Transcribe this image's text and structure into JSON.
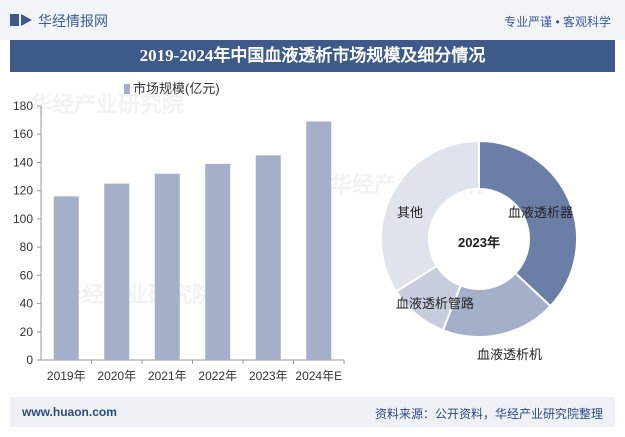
{
  "header": {
    "site_name": "华经情报网",
    "slogan": "专业严谨 • 客观科学"
  },
  "title": "2019-2024年中国血液透析市场规模及细分情况",
  "footer": {
    "url": "www.huaon.com",
    "source": "资料来源：公开资料，华经产业研究院整理"
  },
  "colors": {
    "bar": "#a6afc9",
    "title_band": "#3d5a8a",
    "donut": [
      "#6b7ea8",
      "#a4b0ca",
      "#c7cddd",
      "#dfe3ec"
    ]
  },
  "chart_data": [
    {
      "type": "bar",
      "legend": "市场规模(亿元)",
      "categories": [
        "2019年",
        "2020年",
        "2021年",
        "2022年",
        "2023年",
        "2024年E"
      ],
      "values": [
        116,
        125,
        132,
        139,
        145,
        169
      ],
      "ylim": [
        0,
        180
      ],
      "yticks": [
        "0",
        "20",
        "40",
        "60",
        "80",
        "100",
        "120",
        "140",
        "160",
        "180"
      ]
    },
    {
      "type": "pie",
      "center_label": "2023年",
      "labels": [
        "血液透析器",
        "血液透析机",
        "血液透析管路",
        "其他"
      ],
      "values": [
        37,
        19,
        10,
        34
      ]
    }
  ]
}
